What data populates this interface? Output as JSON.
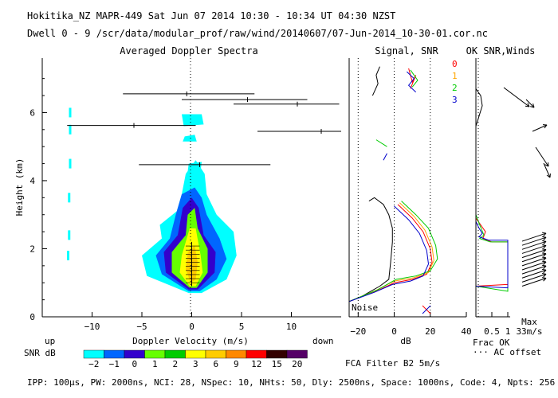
{
  "header": {
    "line1": "Hokitika_NZ  MAPR-449  Sat Jun 07 2014 10:30 - 10:34 UT 04:30 NZST",
    "line2": "Dwell  0 -  9   /scr/data/modular_prof/raw/wind/20140607/07-Jun-2014_10-30-01.cor.nc"
  },
  "chart_data": [
    {
      "type": "heatmap",
      "title": "Averaged Doppler Spectra",
      "xlabel": "Doppler Velocity (m/s)",
      "ylabel": "Height (km)",
      "xlim": [
        -15,
        15
      ],
      "ylim": [
        0,
        7.6
      ],
      "x_ticks": [
        -10,
        -5,
        0,
        5,
        10
      ],
      "y_ticks": [
        0,
        2,
        4,
        6
      ],
      "x_ticklabels": [
        "−10",
        "−5",
        "0",
        "5",
        "10"
      ],
      "y_ticklabels": [
        "0",
        "2",
        "4",
        "6"
      ],
      "left_note": "up",
      "right_note": "down",
      "velocity_markers": [
        {
          "height": 6.55,
          "center": -0.5,
          "min": -6.9,
          "max": 6.3
        },
        {
          "height": 6.38,
          "center": 5.6,
          "min": -1.0,
          "max": 11.6
        },
        {
          "height": 6.25,
          "center": 10.6,
          "min": 4.2,
          "max": 14.8
        },
        {
          "height": 5.62,
          "center": -5.8,
          "min": -12.5,
          "max": 0.4
        },
        {
          "height": 5.45,
          "center": 13.0,
          "min": 6.6,
          "max": 15.0
        },
        {
          "height": 4.47,
          "center": 0.8,
          "min": -5.3,
          "max": 7.9
        }
      ]
    },
    {
      "type": "line",
      "title": "Signal, SNR",
      "xlabel": "dB",
      "xlim": [
        -25,
        40
      ],
      "x_ticks": [
        -20,
        0,
        20,
        40
      ],
      "x_ticklabels": [
        "−20",
        "0",
        "20",
        "40"
      ],
      "reference_lines_db": [
        -20,
        0,
        20
      ],
      "noise_label": "Noise",
      "legend": [
        "0",
        "1",
        "2",
        "3"
      ],
      "legend_colors": [
        "#ff0000",
        "#ffa500",
        "#00cc00",
        "#0000cc"
      ],
      "series": [
        {
          "name": "noise",
          "color": "#000000",
          "points": [
            [
              -25,
              0.45
            ],
            [
              -18,
              0.6
            ],
            [
              -8,
              0.9
            ],
            [
              -3,
              1.1
            ],
            [
              -2,
              1.6
            ],
            [
              -1,
              2.2
            ],
            [
              -1,
              2.6
            ],
            [
              -3,
              3.0
            ],
            [
              -6,
              3.3
            ],
            [
              -11,
              3.5
            ],
            [
              -14,
              3.4
            ]
          ]
        },
        {
          "name": "0",
          "color": "#ff0000",
          "points": [
            [
              -25,
              0.45
            ],
            [
              -10,
              0.75
            ],
            [
              0,
              1.0
            ],
            [
              10,
              1.1
            ],
            [
              18,
              1.25
            ],
            [
              21,
              1.6
            ],
            [
              20,
              2.0
            ],
            [
              16,
              2.5
            ],
            [
              10,
              2.9
            ],
            [
              4,
              3.2
            ],
            [
              2,
              3.3
            ]
          ]
        },
        {
          "name": "1",
          "color": "#ffa500",
          "points": [
            [
              -25,
              0.45
            ],
            [
              -10,
              0.78
            ],
            [
              0,
              1.05
            ],
            [
              11,
              1.15
            ],
            [
              19,
              1.3
            ],
            [
              22,
              1.65
            ],
            [
              21,
              2.05
            ],
            [
              17,
              2.55
            ],
            [
              11,
              2.95
            ],
            [
              5,
              3.25
            ],
            [
              3,
              3.35
            ]
          ]
        },
        {
          "name": "2",
          "color": "#00cc00",
          "points": [
            [
              -25,
              0.45
            ],
            [
              -9,
              0.8
            ],
            [
              1,
              1.1
            ],
            [
              12,
              1.2
            ],
            [
              20,
              1.35
            ],
            [
              24,
              1.7
            ],
            [
              23,
              2.1
            ],
            [
              19,
              2.6
            ],
            [
              12,
              3.0
            ],
            [
              6,
              3.3
            ],
            [
              4,
              3.4
            ]
          ]
        },
        {
          "name": "3",
          "color": "#0000cc",
          "points": [
            [
              -25,
              0.45
            ],
            [
              -11,
              0.72
            ],
            [
              -1,
              0.95
            ],
            [
              9,
              1.05
            ],
            [
              16,
              1.2
            ],
            [
              19,
              1.55
            ],
            [
              18,
              1.95
            ],
            [
              14,
              2.45
            ],
            [
              8,
              2.85
            ],
            [
              2,
              3.15
            ],
            [
              0,
              3.25
            ]
          ]
        }
      ]
    },
    {
      "type": "line",
      "title": "OK SNR,Winds",
      "xlabel": "Frac OK",
      "xlim": [
        0,
        1
      ],
      "x_ticks": [
        0.5,
        1
      ],
      "x_ticklabels": [
        "0.5",
        "1"
      ],
      "note": "··· AC offset",
      "max_label": "Max",
      "max_value": "33m/s",
      "series": [
        {
          "name": "0",
          "color": "#ff0000",
          "points": [
            [
              0,
              2.9
            ],
            [
              0.15,
              2.7
            ],
            [
              0.3,
              2.5
            ],
            [
              0.22,
              2.3
            ],
            [
              0.5,
              2.2
            ],
            [
              1.0,
              2.2
            ],
            [
              1.0,
              0.95
            ],
            [
              0,
              0.9
            ]
          ]
        },
        {
          "name": "2",
          "color": "#00cc00",
          "points": [
            [
              0,
              3.0
            ],
            [
              0.12,
              2.7
            ],
            [
              0.25,
              2.4
            ],
            [
              0.12,
              2.3
            ],
            [
              0.45,
              2.2
            ],
            [
              1.0,
              2.2
            ],
            [
              1.0,
              0.75
            ],
            [
              0,
              0.9
            ]
          ]
        },
        {
          "name": "3",
          "color": "#0000cc",
          "points": [
            [
              0,
              2.8
            ],
            [
              0.1,
              2.6
            ],
            [
              0.2,
              2.45
            ],
            [
              0.1,
              2.35
            ],
            [
              0.4,
              2.25
            ],
            [
              1.0,
              2.25
            ],
            [
              1.0,
              0.85
            ],
            [
              0,
              0.9
            ]
          ]
        }
      ]
    }
  ],
  "colorbar": {
    "label": "SNR dB",
    "labels": [
      "−2",
      "−1",
      "0",
      "1",
      "2",
      "3",
      "6",
      "9",
      "12",
      "15",
      "20"
    ],
    "colors": [
      "#00ffff",
      "#0066ff",
      "#3300cc",
      "#66ff00",
      "#00cc00",
      "#ffff00",
      "#ffcc00",
      "#ff8800",
      "#ff0000",
      "#330000",
      "#550066"
    ]
  },
  "filter_text": "FCA Filter B2   5m/s",
  "footer": "IPP: 100μs,  PW: 2000ns,  NCI:  28,  NSpec: 10,  NHts: 50,  Dly: 2500ns,  Space: 1000ns,  Code: 4,  Npts: 256"
}
